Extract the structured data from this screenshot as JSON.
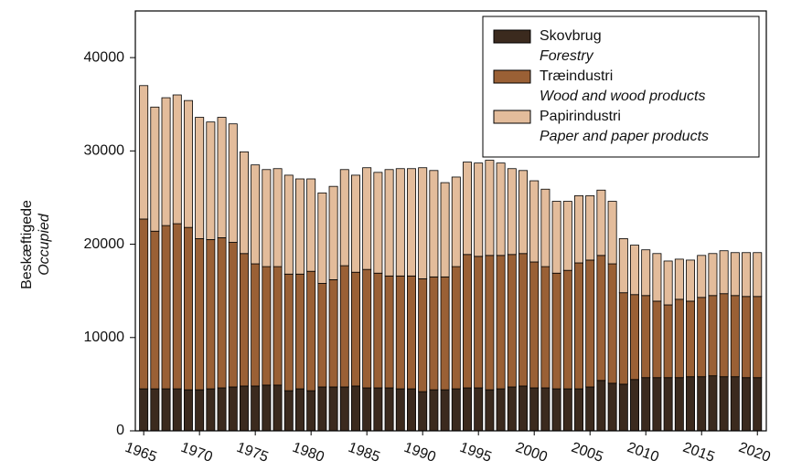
{
  "chart_data": {
    "type": "stacked-bar",
    "y_label": "Beskæftigede",
    "y_label_en": "Occupied",
    "x": [
      1965,
      1966,
      1967,
      1968,
      1969,
      1970,
      1971,
      1972,
      1973,
      1974,
      1975,
      1976,
      1977,
      1978,
      1979,
      1980,
      1981,
      1982,
      1983,
      1984,
      1985,
      1986,
      1987,
      1988,
      1989,
      1990,
      1991,
      1992,
      1993,
      1994,
      1995,
      1996,
      1997,
      1998,
      1999,
      2000,
      2001,
      2002,
      2003,
      2004,
      2005,
      2006,
      2007,
      2008,
      2009,
      2010,
      2011,
      2012,
      2013,
      2014,
      2015,
      2016,
      2017,
      2018,
      2019,
      2020
    ],
    "xlim": [
      1964.25,
      2020.8
    ],
    "xticks": [
      1965,
      1970,
      1975,
      1980,
      1985,
      1990,
      1995,
      2000,
      2005,
      2010,
      2015,
      2020
    ],
    "ylim": [
      0,
      45000
    ],
    "yticks": [
      0,
      10000,
      20000,
      30000,
      40000
    ],
    "legend": "upper right",
    "series": [
      {
        "name": "Skovbrug",
        "name_en": "Forestry",
        "color": "#3b2a1e",
        "values": [
          4500,
          4500,
          4500,
          4500,
          4400,
          4400,
          4500,
          4600,
          4700,
          4800,
          4800,
          4900,
          4900,
          4300,
          4500,
          4300,
          4700,
          4700,
          4700,
          4800,
          4600,
          4600,
          4600,
          4500,
          4500,
          4200,
          4400,
          4400,
          4500,
          4600,
          4600,
          4400,
          4500,
          4700,
          4800,
          4600,
          4600,
          4500,
          4500,
          4500,
          4700,
          5400,
          5100,
          5000,
          5500,
          5700,
          5700,
          5700,
          5700,
          5800,
          5800,
          5900,
          5800,
          5800,
          5700,
          5700
        ]
      },
      {
        "name": "Træindustri",
        "name_en": "Wood and wood products",
        "color": "#9a6035",
        "values": [
          18200,
          16900,
          17500,
          17700,
          17400,
          16200,
          16000,
          16100,
          15500,
          14200,
          13100,
          12700,
          12700,
          12500,
          12300,
          12800,
          11100,
          11500,
          13000,
          12200,
          12700,
          12300,
          12000,
          12100,
          12100,
          12100,
          12100,
          12100,
          13100,
          14300,
          14100,
          14400,
          14300,
          14200,
          14200,
          13500,
          13000,
          12400,
          12700,
          13500,
          13600,
          13400,
          12800,
          9800,
          9100,
          8800,
          8200,
          7800,
          8400,
          8100,
          8500,
          8600,
          8900,
          8700,
          8700,
          8700
        ]
      },
      {
        "name": "Papirindustri",
        "name_en": "Paper and paper products",
        "color": "#e3bc9b",
        "values": [
          14300,
          13300,
          13700,
          13800,
          13600,
          13000,
          12600,
          12900,
          12700,
          10900,
          10600,
          10400,
          10500,
          10600,
          10200,
          9900,
          9700,
          10000,
          10300,
          10400,
          10900,
          10800,
          11400,
          11500,
          11500,
          11900,
          11400,
          10100,
          9600,
          9900,
          10000,
          10200,
          9900,
          9200,
          8900,
          8700,
          8300,
          7700,
          7400,
          7200,
          6900,
          7000,
          6700,
          5800,
          5300,
          4900,
          5100,
          4700,
          4300,
          4400,
          4500,
          4500,
          4600,
          4600,
          4700,
          4700
        ]
      }
    ]
  }
}
